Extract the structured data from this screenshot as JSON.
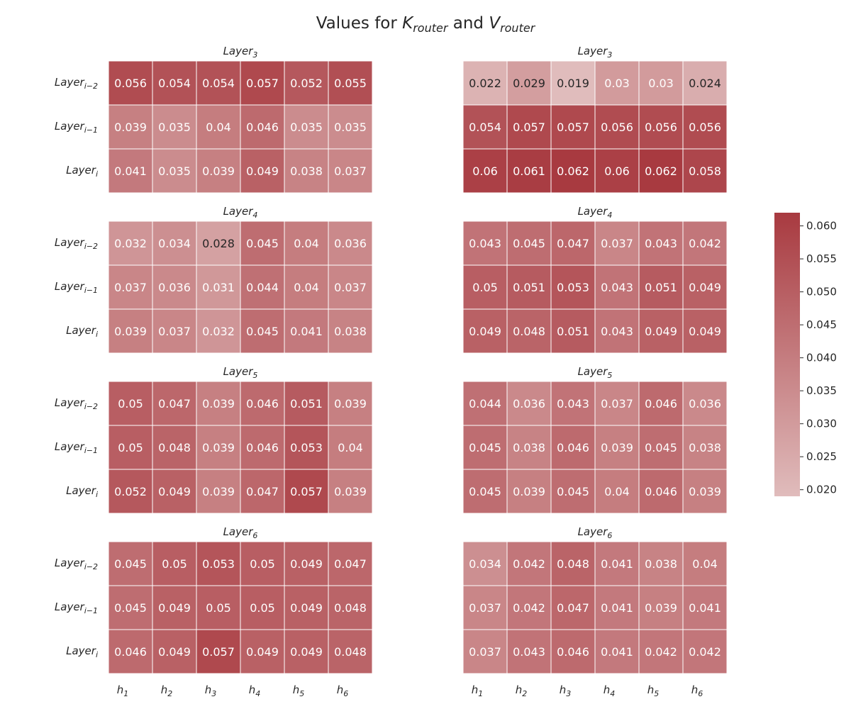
{
  "chart_data": {
    "type": "heatmap",
    "title": {
      "prefix": "Values for ",
      "k_var": "K",
      "k_sub": "router",
      "conj": " and ",
      "v_var": "V",
      "v_sub": "router"
    },
    "row_labels": [
      {
        "base": "Layer",
        "sub": "i−2"
      },
      {
        "base": "Layer",
        "sub": "i−1"
      },
      {
        "base": "Layer",
        "sub": "i"
      }
    ],
    "col_labels": [
      {
        "base": "h",
        "sub": "1"
      },
      {
        "base": "h",
        "sub": "2"
      },
      {
        "base": "h",
        "sub": "3"
      },
      {
        "base": "h",
        "sub": "4"
      },
      {
        "base": "h",
        "sub": "5"
      },
      {
        "base": "h",
        "sub": "6"
      }
    ],
    "colormap": {
      "low": "#e0bcbc",
      "high": "#a83a40",
      "vmin": 0.019,
      "vmax": 0.062
    },
    "colorbar": {
      "ticks": [
        0.02,
        0.025,
        0.03,
        0.035,
        0.04,
        0.045,
        0.05,
        0.055,
        0.06
      ],
      "tick_labels": [
        "0.020",
        "0.025",
        "0.030",
        "0.035",
        "0.040",
        "0.045",
        "0.050",
        "0.055",
        "0.060"
      ]
    },
    "panels": [
      {
        "title_base": "Layer",
        "title_sub": "3",
        "column": "left",
        "values": [
          [
            0.056,
            0.054,
            0.054,
            0.057,
            0.052,
            0.055
          ],
          [
            0.039,
            0.035,
            0.04,
            0.046,
            0.035,
            0.035
          ],
          [
            0.041,
            0.035,
            0.039,
            0.049,
            0.038,
            0.037
          ]
        ]
      },
      {
        "title_base": "Layer",
        "title_sub": "3",
        "column": "right",
        "values": [
          [
            0.022,
            0.029,
            0.019,
            0.03,
            0.03,
            0.024
          ],
          [
            0.054,
            0.057,
            0.057,
            0.056,
            0.056,
            0.056
          ],
          [
            0.06,
            0.061,
            0.062,
            0.06,
            0.062,
            0.058
          ]
        ]
      },
      {
        "title_base": "Layer",
        "title_sub": "4",
        "column": "left",
        "values": [
          [
            0.032,
            0.034,
            0.028,
            0.045,
            0.04,
            0.036
          ],
          [
            0.037,
            0.036,
            0.031,
            0.044,
            0.04,
            0.037
          ],
          [
            0.039,
            0.037,
            0.032,
            0.045,
            0.041,
            0.038
          ]
        ]
      },
      {
        "title_base": "Layer",
        "title_sub": "4",
        "column": "right",
        "values": [
          [
            0.043,
            0.045,
            0.047,
            0.037,
            0.043,
            0.042
          ],
          [
            0.05,
            0.051,
            0.053,
            0.043,
            0.051,
            0.049
          ],
          [
            0.049,
            0.048,
            0.051,
            0.043,
            0.049,
            0.049
          ]
        ]
      },
      {
        "title_base": "Layer",
        "title_sub": "5",
        "column": "left",
        "values": [
          [
            0.05,
            0.047,
            0.039,
            0.046,
            0.051,
            0.039
          ],
          [
            0.05,
            0.048,
            0.039,
            0.046,
            0.053,
            0.04
          ],
          [
            0.052,
            0.049,
            0.039,
            0.047,
            0.057,
            0.039
          ]
        ]
      },
      {
        "title_base": "Layer",
        "title_sub": "5",
        "column": "right",
        "values": [
          [
            0.044,
            0.036,
            0.043,
            0.037,
            0.046,
            0.036
          ],
          [
            0.045,
            0.038,
            0.046,
            0.039,
            0.045,
            0.038
          ],
          [
            0.045,
            0.039,
            0.045,
            0.04,
            0.046,
            0.039
          ]
        ]
      },
      {
        "title_base": "Layer",
        "title_sub": "6",
        "column": "left",
        "values": [
          [
            0.045,
            0.05,
            0.053,
            0.05,
            0.049,
            0.047
          ],
          [
            0.045,
            0.049,
            0.05,
            0.05,
            0.049,
            0.048
          ],
          [
            0.046,
            0.049,
            0.057,
            0.049,
            0.049,
            0.048
          ]
        ]
      },
      {
        "title_base": "Layer",
        "title_sub": "6",
        "column": "right",
        "values": [
          [
            0.034,
            0.042,
            0.048,
            0.041,
            0.038,
            0.04
          ],
          [
            0.037,
            0.042,
            0.047,
            0.041,
            0.039,
            0.041
          ],
          [
            0.037,
            0.043,
            0.046,
            0.041,
            0.042,
            0.042
          ]
        ]
      }
    ]
  }
}
